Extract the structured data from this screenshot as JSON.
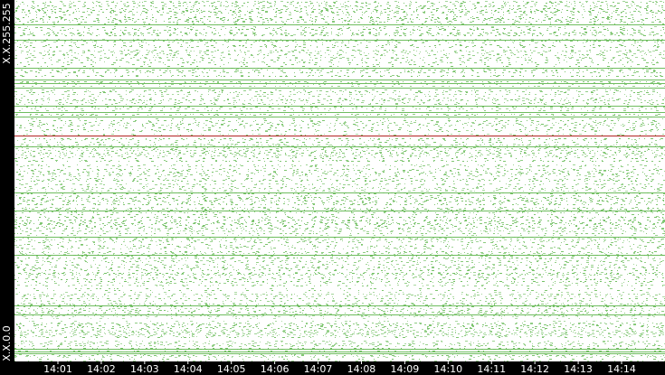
{
  "chart_data": {
    "type": "raster",
    "categories": [
      "14:01",
      "14:02",
      "14:03",
      "14:04",
      "14:05",
      "14:06",
      "14:07",
      "14:08",
      "14:09",
      "14:10",
      "14:11",
      "14:12",
      "14:13",
      "14:14"
    ],
    "y_axis_labels": [
      "X.X.255.255",
      "X.X.0.0"
    ]
  }
}
